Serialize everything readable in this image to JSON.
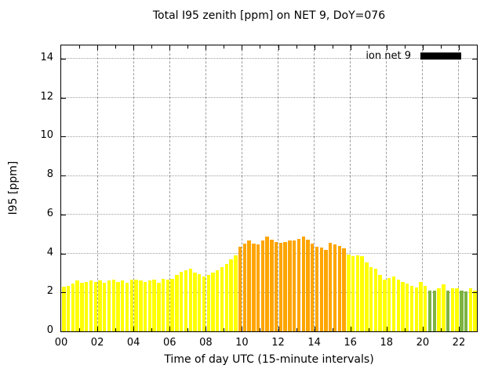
{
  "title": "Total I95 zenith [ppm] on NET 9, DoY=076",
  "legend": {
    "label": "ion net 9",
    "swatch_color": "#000000"
  },
  "chart_data": {
    "type": "bar",
    "title": "Total I95 zenith [ppm] on NET 9, DoY=076",
    "xlabel": "Time of day UTC (15-minute intervals)",
    "ylabel": "I95 [ppm]",
    "xlim": [
      0,
      23
    ],
    "ylim": [
      0,
      14.68
    ],
    "grid": true,
    "legend_position": "top-right-inside",
    "x_tick_hours": [
      0,
      2,
      4,
      6,
      8,
      10,
      12,
      14,
      16,
      18,
      20,
      22
    ],
    "x_tick_labels": [
      "00",
      "02",
      "04",
      "06",
      "08",
      "10",
      "12",
      "14",
      "16",
      "18",
      "20",
      "22"
    ],
    "y_tick_values": [
      0,
      2,
      4,
      6,
      8,
      10,
      12,
      14
    ],
    "y_tick_labels": [
      "0",
      "2",
      "4",
      "6",
      "8",
      "10",
      "12",
      "14"
    ],
    "interval_minutes": 15,
    "start_time_utc": "00:00",
    "end_time_utc": "22:45",
    "series_name": "ion net 9",
    "bar_colors": {
      "Y": "#ffff00",
      "O": "#ffa500",
      "G": "#7cb342"
    },
    "values": [
      2.3,
      2.35,
      2.45,
      2.6,
      2.5,
      2.55,
      2.6,
      2.55,
      2.6,
      2.5,
      2.6,
      2.65,
      2.55,
      2.6,
      2.5,
      2.65,
      2.65,
      2.6,
      2.55,
      2.6,
      2.65,
      2.5,
      2.7,
      2.65,
      2.7,
      2.9,
      3.05,
      3.15,
      3.2,
      3.0,
      2.95,
      2.8,
      2.9,
      3.0,
      3.15,
      3.3,
      3.45,
      3.7,
      3.9,
      4.35,
      4.5,
      4.65,
      4.5,
      4.45,
      4.65,
      4.85,
      4.7,
      4.6,
      4.55,
      4.6,
      4.65,
      4.65,
      4.75,
      4.85,
      4.7,
      4.5,
      4.35,
      4.3,
      4.2,
      4.55,
      4.45,
      4.4,
      4.25,
      3.95,
      3.85,
      3.9,
      3.85,
      3.55,
      3.3,
      3.2,
      2.9,
      2.65,
      2.75,
      2.8,
      2.65,
      2.55,
      2.45,
      2.35,
      2.25,
      2.55,
      2.35,
      2.1,
      2.1,
      2.2,
      2.4,
      2.1,
      2.2,
      2.2,
      2.1,
      2.05,
      2.2,
      2.1
    ],
    "color_codes": "YYYYYYYYYYYYYYYYYYYYYYYYYYYYYYYYYYYYYYYOOOOOOOOOOOOOOOOOOOOOOOOYYYYYYYYYYYYYYYYYYGGYYGYYGGYY"
  }
}
